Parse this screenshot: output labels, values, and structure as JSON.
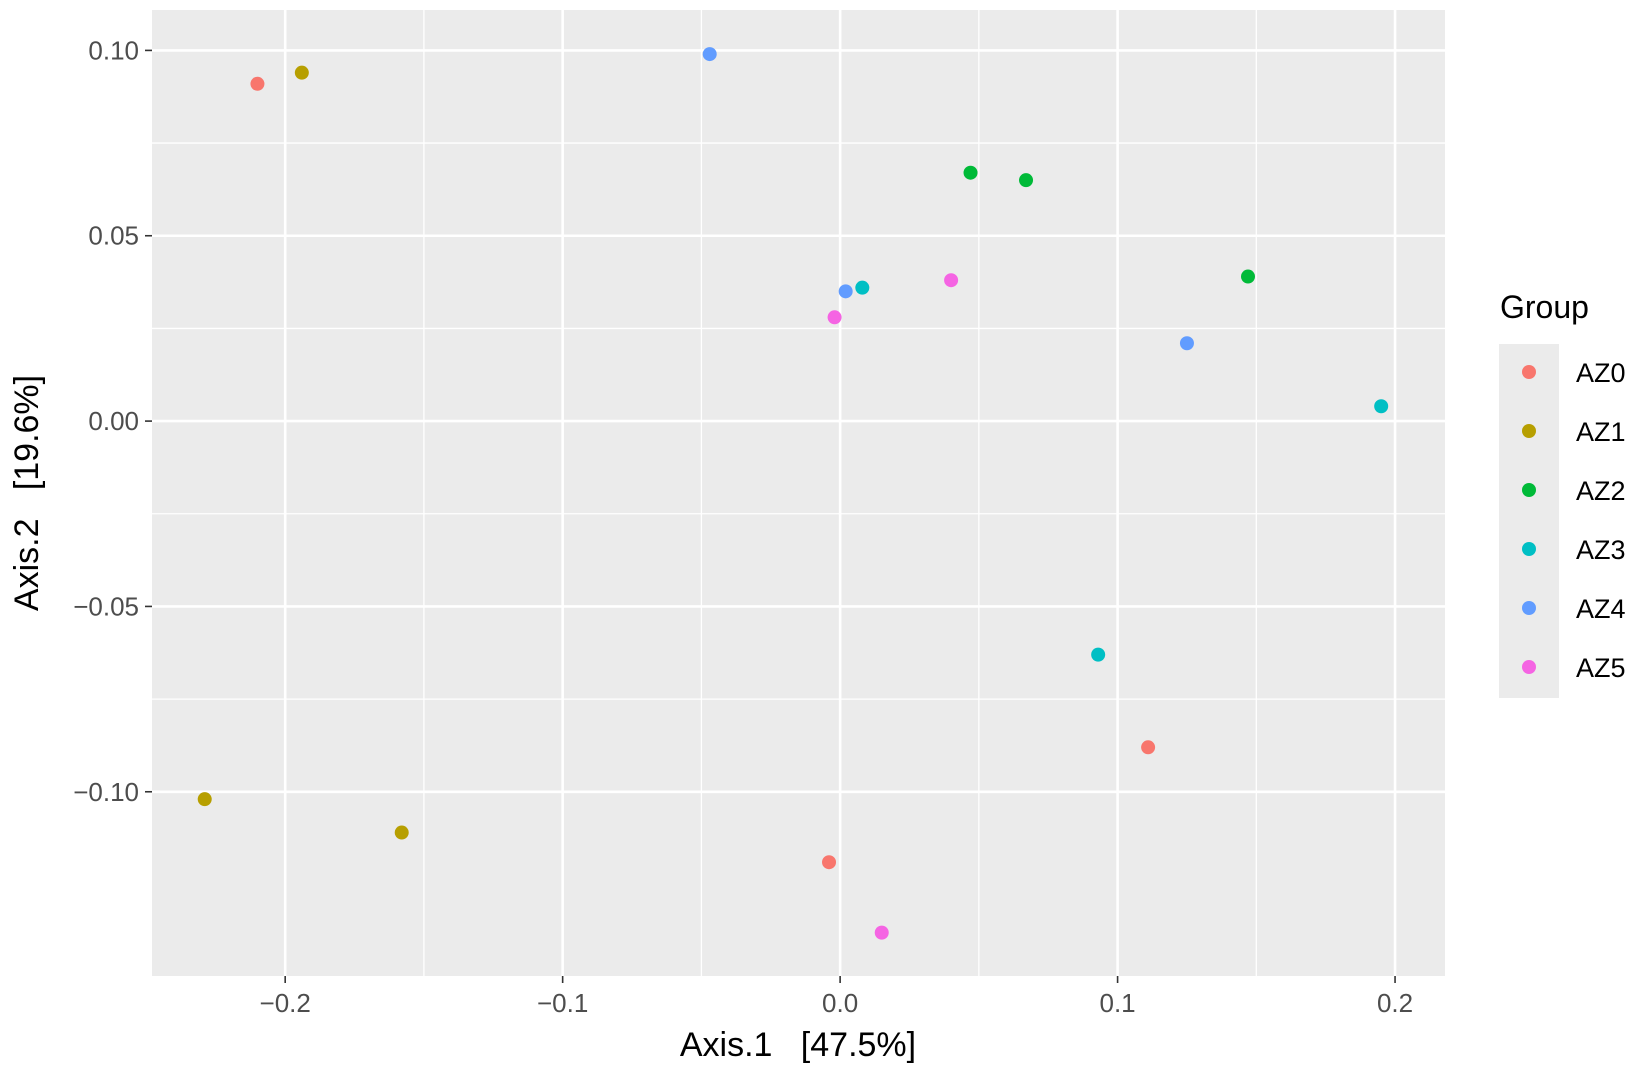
{
  "chart_data": {
    "type": "scatter",
    "xlabel": "Axis.1   [47.5%]",
    "ylabel": "Axis.2   [19.6%]",
    "xlim": [
      -0.248,
      0.218
    ],
    "ylim": [
      -0.1497,
      0.1109
    ],
    "x_ticks": [
      {
        "value": -0.2,
        "label": "−0.2"
      },
      {
        "value": -0.1,
        "label": "−0.1"
      },
      {
        "value": 0.0,
        "label": "0.0"
      },
      {
        "value": 0.1,
        "label": "0.1"
      },
      {
        "value": 0.2,
        "label": "0.2"
      }
    ],
    "y_ticks": [
      {
        "value": 0.1,
        "label": "0.10"
      },
      {
        "value": 0.05,
        "label": "0.05"
      },
      {
        "value": 0.0,
        "label": "0.00"
      },
      {
        "value": -0.05,
        "label": "−0.05"
      },
      {
        "value": -0.1,
        "label": "−0.10"
      }
    ],
    "grid": true,
    "legend": {
      "title": "Group",
      "placement": "right"
    },
    "series": [
      {
        "name": "AZ0",
        "color": "#F8766D",
        "points": [
          [
            -0.21,
            0.091
          ],
          [
            0.111,
            -0.088
          ],
          [
            -0.004,
            -0.119
          ]
        ]
      },
      {
        "name": "AZ1",
        "color": "#B79F00",
        "points": [
          [
            -0.194,
            0.094
          ],
          [
            -0.229,
            -0.102
          ],
          [
            -0.158,
            -0.111
          ]
        ]
      },
      {
        "name": "AZ2",
        "color": "#00BA38",
        "points": [
          [
            0.047,
            0.067
          ],
          [
            0.067,
            0.065
          ],
          [
            0.147,
            0.039
          ]
        ]
      },
      {
        "name": "AZ3",
        "color": "#00BFC4",
        "points": [
          [
            0.008,
            0.036
          ],
          [
            0.195,
            0.004
          ],
          [
            0.093,
            -0.063
          ]
        ]
      },
      {
        "name": "AZ4",
        "color": "#619CFF",
        "points": [
          [
            -0.047,
            0.099
          ],
          [
            0.002,
            0.035
          ],
          [
            0.125,
            0.021
          ]
        ]
      },
      {
        "name": "AZ5",
        "color": "#F564E3",
        "points": [
          [
            0.04,
            0.038
          ],
          [
            -0.002,
            0.028
          ],
          [
            0.015,
            -0.138
          ]
        ]
      }
    ]
  }
}
